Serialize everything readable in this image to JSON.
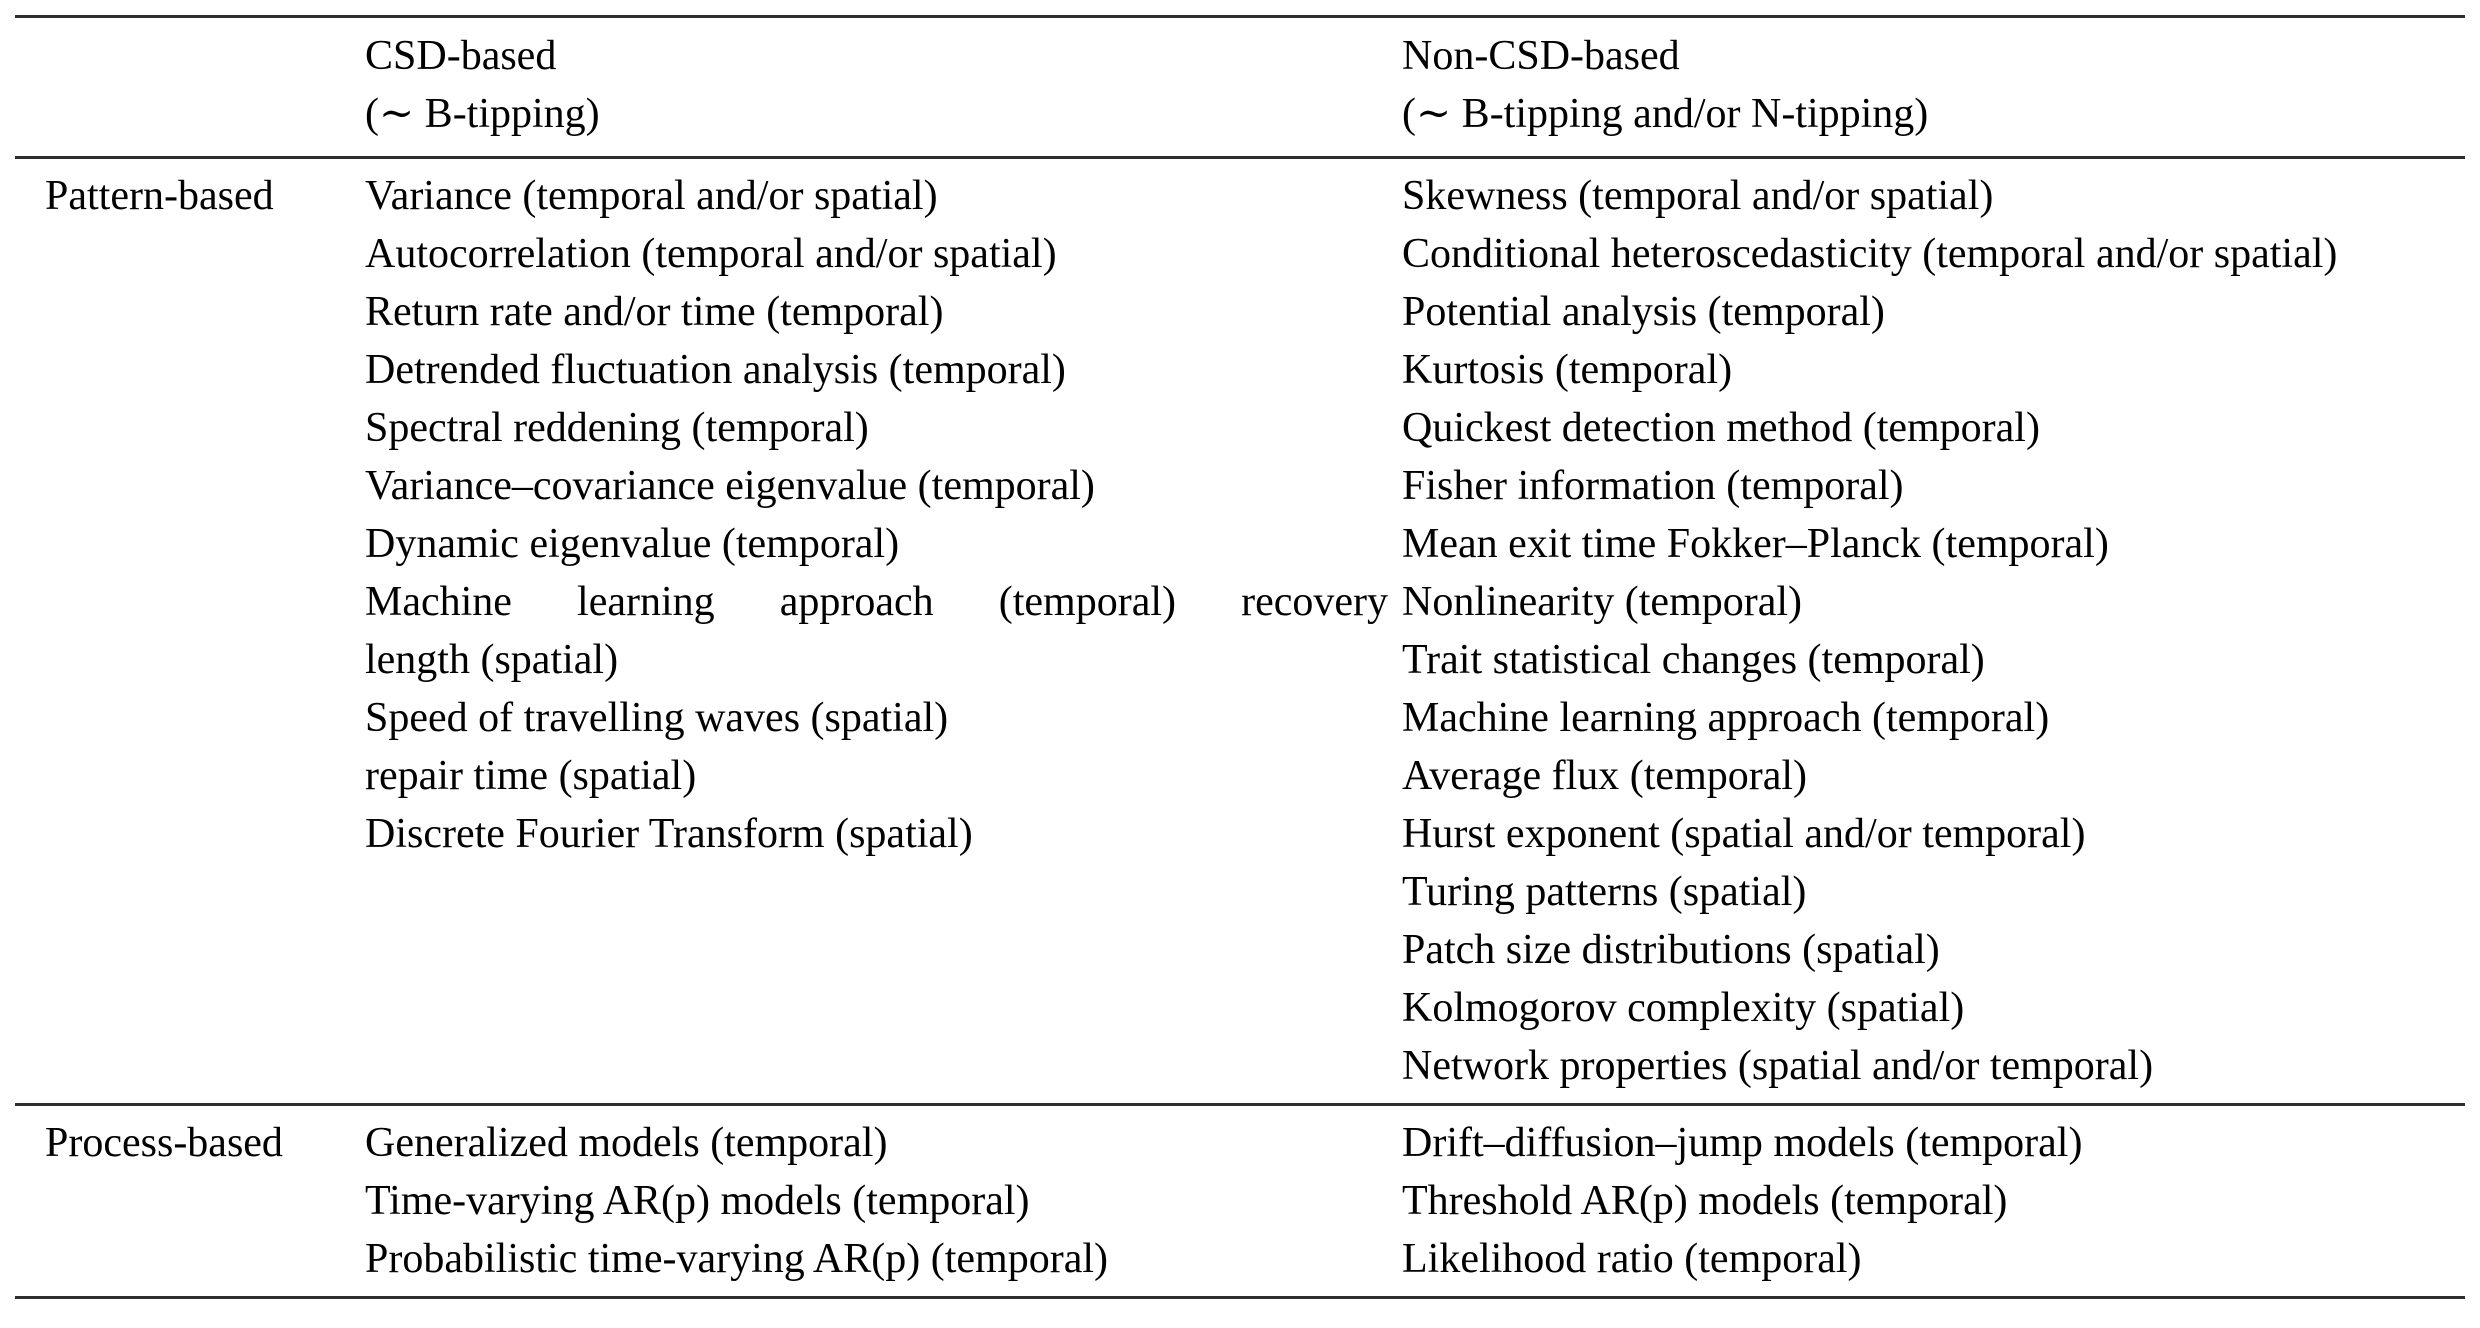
{
  "table": {
    "header": {
      "col_csd": [
        "CSD-based",
        "(∼ B-tipping)"
      ],
      "col_noncsd": [
        "Non-CSD-based",
        "(∼ B-tipping and/or N-tipping)"
      ]
    },
    "sections": [
      {
        "label": "Pattern-based",
        "csd": [
          {
            "t": "Variance (temporal and/or spatial)"
          },
          {
            "t": "Autocorrelation (temporal and/or spatial)"
          },
          {
            "t": "Return rate and/or time (temporal)"
          },
          {
            "t": "Detrended fluctuation analysis (temporal)"
          },
          {
            "t": "Spectral reddening (temporal)"
          },
          {
            "t": "Variance–covariance eigenvalue (temporal)"
          },
          {
            "t": "Dynamic eigenvalue (temporal)"
          },
          {
            "t": "Machine learning approach (temporal) recovery",
            "j": true
          },
          {
            "t": "length (spatial)"
          },
          {
            "t": "Speed of travelling waves (spatial)"
          },
          {
            "t": "repair time (spatial)"
          },
          {
            "t": "Discrete Fourier Transform (spatial)"
          }
        ],
        "noncsd": [
          {
            "t": "Skewness (temporal and/or spatial)"
          },
          {
            "t": "Conditional heteroscedasticity (temporal and/or spatial)"
          },
          {
            "t": "Potential analysis (temporal)"
          },
          {
            "t": "Kurtosis (temporal)"
          },
          {
            "t": "Quickest detection method (temporal)"
          },
          {
            "t": "Fisher information (temporal)"
          },
          {
            "t": "Mean exit time Fokker–Planck (temporal)"
          },
          {
            "t": "Nonlinearity (temporal)"
          },
          {
            "t": "Trait statistical changes (temporal)"
          },
          {
            "t": "Machine learning approach (temporal)"
          },
          {
            "t": "Average flux (temporal)"
          },
          {
            "t": "Hurst exponent (spatial and/or temporal)"
          },
          {
            "t": "Turing patterns (spatial)"
          },
          {
            "t": "Patch size distributions (spatial)"
          },
          {
            "t": "Kolmogorov complexity (spatial)"
          },
          {
            "t": "Network properties (spatial and/or temporal)"
          }
        ]
      },
      {
        "label": "Process-based",
        "csd": [
          {
            "t": "Generalized models (temporal)"
          },
          {
            "t": "Time-varying AR(p) models (temporal)"
          },
          {
            "t": "Probabilistic time-varying AR(p) (temporal)"
          }
        ],
        "noncsd": [
          {
            "t": "Drift–diffusion–jump models (temporal)"
          },
          {
            "t": "Threshold AR(p) models (temporal)"
          },
          {
            "t": "Likelihood ratio (temporal)"
          }
        ]
      }
    ]
  },
  "style": {
    "rule_color": "#2e2e2e",
    "text_color": "#000000"
  }
}
